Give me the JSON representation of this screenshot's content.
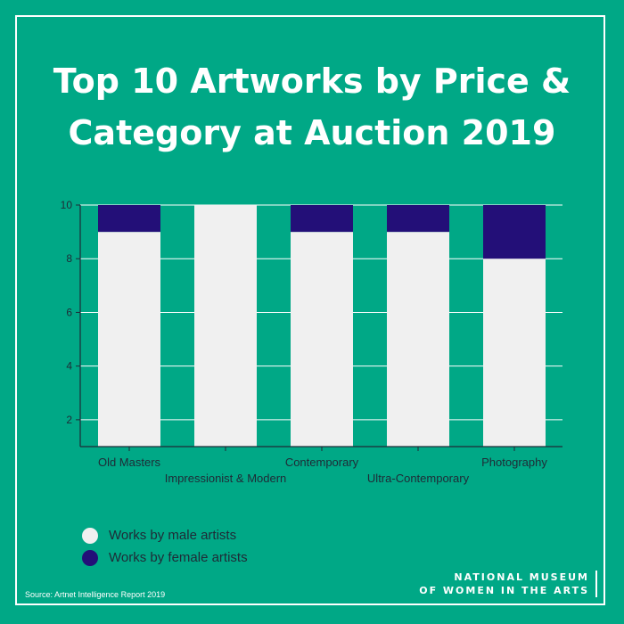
{
  "title": {
    "line1": "Top 10 Artworks by Price &",
    "line2": "Category at Auction 2019"
  },
  "chart_data": {
    "type": "bar",
    "stacked": true,
    "categories": [
      "Old Masters",
      "Impressionist & Modern",
      "Contemporary",
      "Ultra-Contemporary",
      "Photography"
    ],
    "series": [
      {
        "name": "Works by male artists",
        "values": [
          9,
          10,
          9,
          9,
          8
        ],
        "color": "#f0f0f0"
      },
      {
        "name": "Works by female artists",
        "values": [
          1,
          0,
          1,
          1,
          2
        ],
        "color": "#230f78"
      }
    ],
    "yticks": [
      2,
      4,
      6,
      8,
      10
    ],
    "ylim": [
      1,
      10
    ],
    "grid": true,
    "legend_position": "bottom-left"
  },
  "legend": {
    "male": "Works by male artists",
    "female": "Works by female artists"
  },
  "source": "Source: Artnet Intelligence Report 2019",
  "logo": {
    "line1": "NATIONAL MUSEUM",
    "line2": "OF WOMEN IN THE ARTS"
  },
  "colors": {
    "background": "#00a886",
    "male": "#f0f0f0",
    "female": "#230f78",
    "text": "#ffffff"
  }
}
